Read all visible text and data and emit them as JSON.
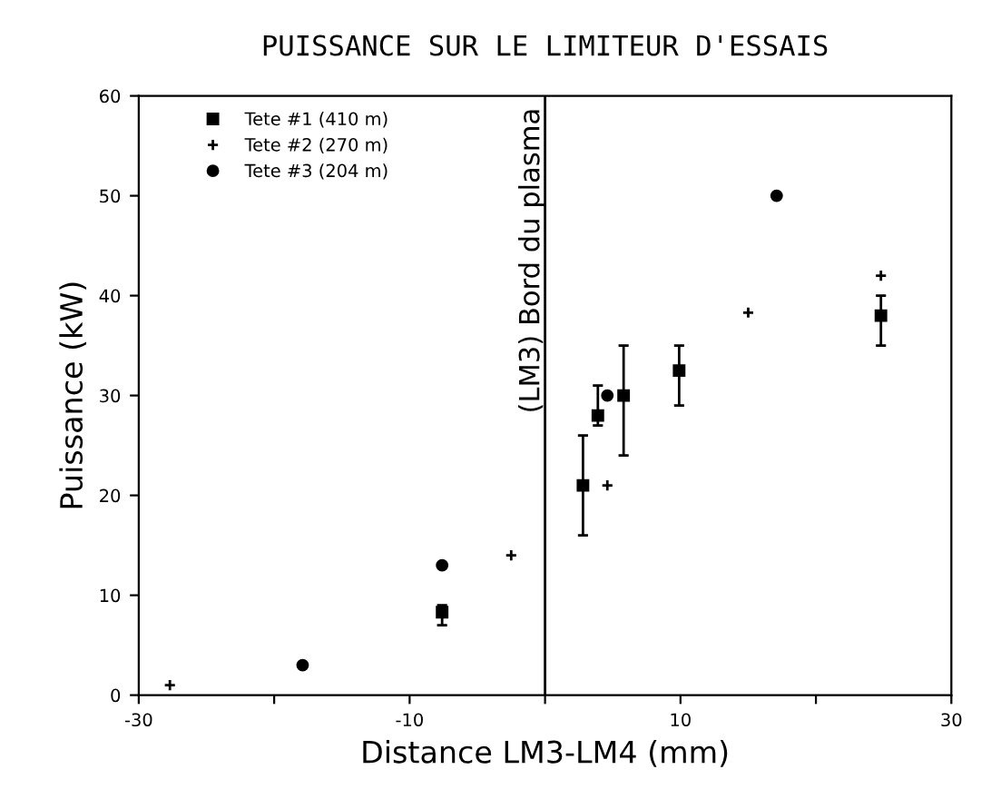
{
  "chart_data": {
    "type": "scatter",
    "title": "PUISSANCE SUR LE LIMITEUR D'ESSAIS",
    "xlabel": "Distance LM3-LM4 (mm)",
    "ylabel": "Puissance (kW)",
    "series": [
      {
        "name": "Tete #1 (410 m)",
        "color": "#000000",
        "marker": "square",
        "x": [
          -7.6,
          2.8,
          3.9,
          5.8,
          9.9,
          24.8
        ],
        "values": [
          8.3,
          21,
          28,
          30,
          32.5,
          38
        ],
        "errors": [
          [
            7,
            9
          ],
          [
            16,
            26
          ],
          [
            27,
            31
          ],
          [
            24,
            35
          ],
          [
            29,
            35
          ],
          [
            35,
            40
          ]
        ]
      },
      {
        "name": "Tete #2 (270 m)",
        "color": "#000000",
        "marker": "cross",
        "x": [
          -27.7,
          -2.5,
          4.6,
          15,
          24.8
        ],
        "values": [
          1,
          14,
          21,
          38.3,
          42
        ]
      },
      {
        "name": "Tete #3 (204 m)",
        "color": "#000000",
        "marker": "circle",
        "x": [
          -17.9,
          -7.6,
          4.6,
          17.1
        ],
        "values": [
          3,
          13,
          30,
          50
        ]
      }
    ],
    "xlim": [
      -30,
      30
    ],
    "xticks": [
      -30,
      {
        "value": -20,
        "label": null
      },
      -10,
      {
        "value": 0,
        "label": null
      },
      10,
      {
        "value": 20,
        "label": null
      },
      30
    ],
    "ylim": [
      0,
      60
    ],
    "yticks": [
      0,
      10,
      20,
      30,
      40,
      50,
      60
    ],
    "ref_lines": [
      {
        "axis": "x",
        "value": 0,
        "label": "(LM3) Bord du plasma",
        "color": "#000000"
      }
    ],
    "legend": "top left"
  }
}
